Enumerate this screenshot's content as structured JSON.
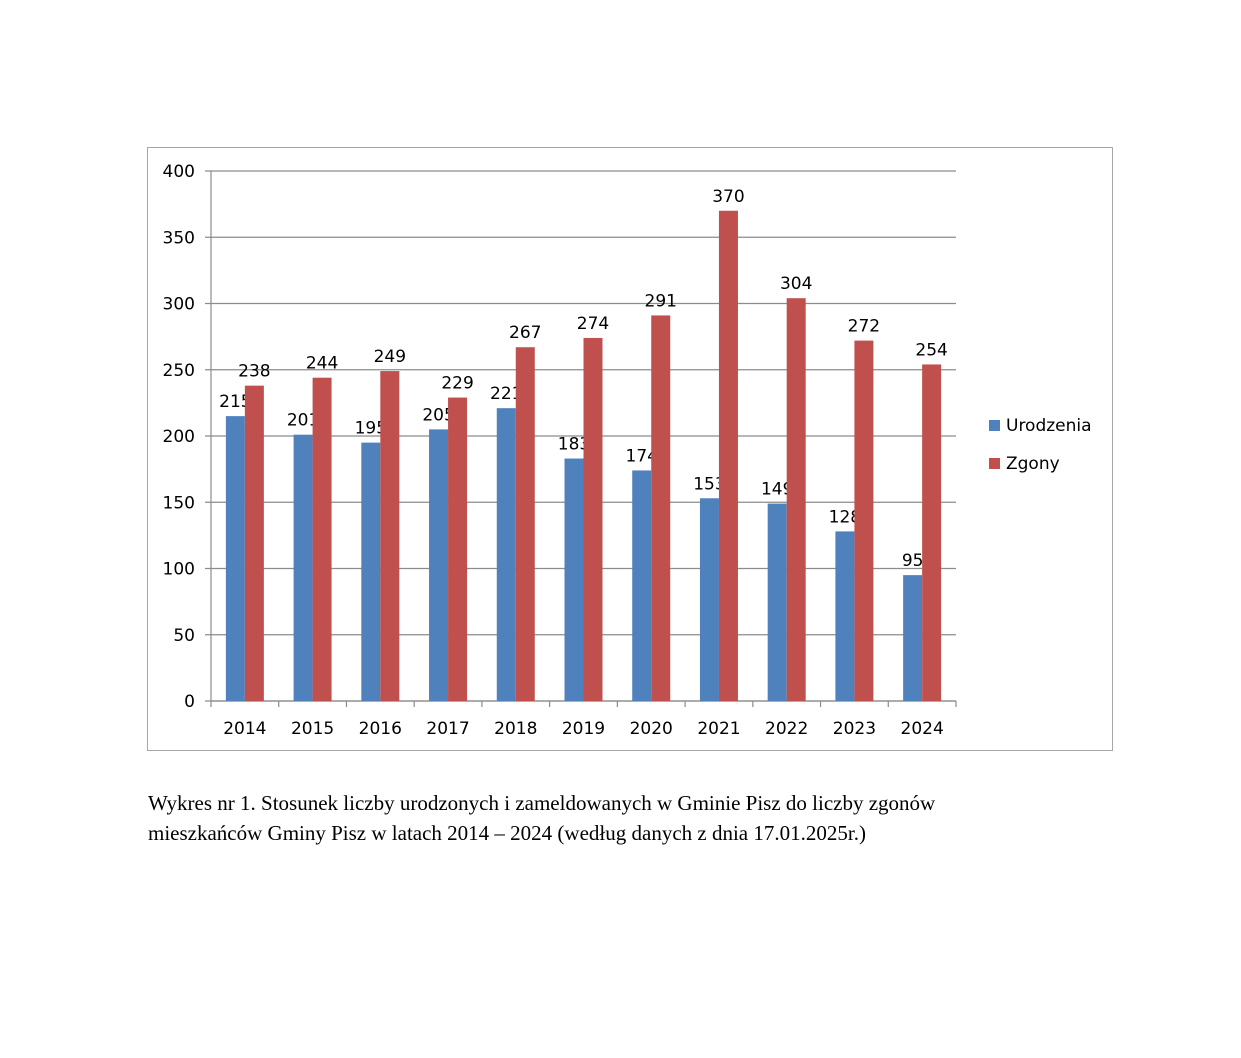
{
  "chart_data": {
    "type": "bar",
    "categories": [
      "2014",
      "2015",
      "2016",
      "2017",
      "2018",
      "2019",
      "2020",
      "2021",
      "2022",
      "2023",
      "2024"
    ],
    "series": [
      {
        "name": "Urodzenia",
        "color": "#4f81bd",
        "values": [
          215,
          201,
          195,
          205,
          221,
          183,
          174,
          153,
          149,
          128,
          95
        ]
      },
      {
        "name": "Zgony",
        "color": "#c0504d",
        "values": [
          238,
          244,
          249,
          229,
          267,
          274,
          291,
          370,
          304,
          272,
          254
        ]
      }
    ],
    "ylim": [
      0,
      400
    ],
    "yticks": [
      0,
      50,
      100,
      150,
      200,
      250,
      300,
      350,
      400
    ],
    "grid": true,
    "legend_position": "right",
    "data_labels": true
  },
  "caption": {
    "line1": "Wykres nr 1. Stosunek liczby urodzonych i zameldowanych w Gminie Pisz do liczby zgonów",
    "line2": "mieszkańców Gminy Pisz w latach 2014 – 2024 (według danych z dnia 17.01.2025r.)"
  }
}
